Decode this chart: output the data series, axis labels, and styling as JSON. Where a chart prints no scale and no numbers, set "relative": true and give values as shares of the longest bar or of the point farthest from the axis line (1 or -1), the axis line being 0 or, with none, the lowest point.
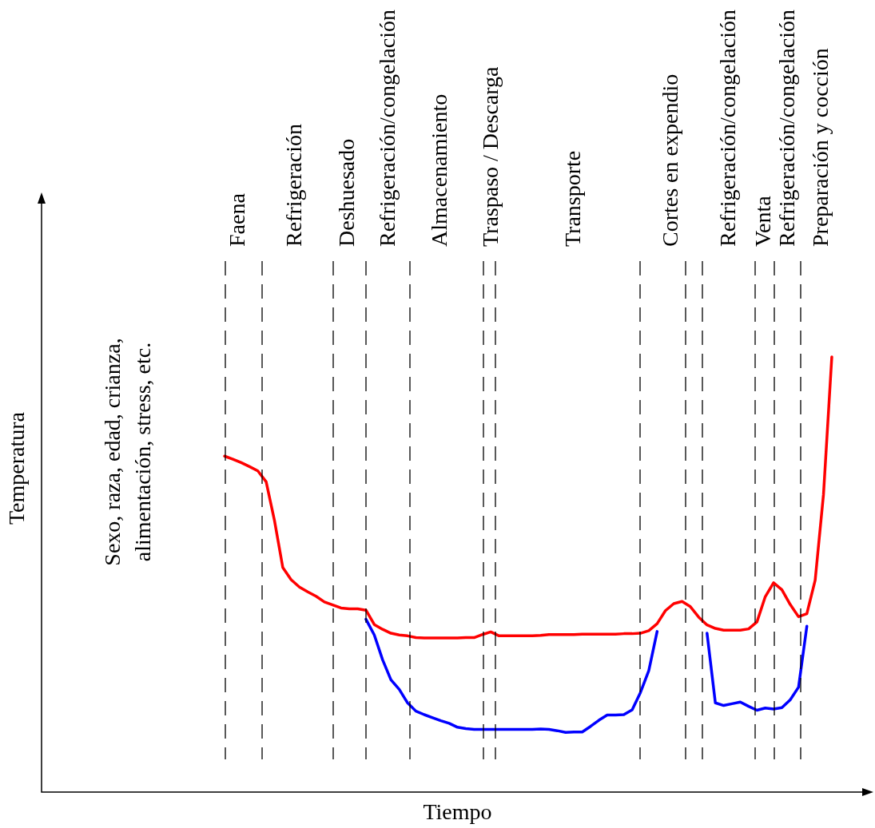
{
  "chart_data": {
    "type": "line",
    "xlabel": "Tiempo",
    "ylabel": "Temperatura",
    "relative": true,
    "marker": "none",
    "grid": "x",
    "categories": [
      null,
      null,
      null,
      null,
      null,
      null,
      null,
      null,
      null,
      null,
      null,
      null,
      null,
      null,
      null,
      null,
      null,
      null,
      null,
      null,
      null,
      null,
      null,
      null,
      null,
      null,
      null,
      null,
      null,
      null,
      null,
      null,
      null,
      null,
      null,
      null,
      null,
      null,
      null,
      null,
      null,
      null,
      null,
      null,
      null,
      null,
      null,
      null,
      null,
      null,
      null,
      null,
      null,
      null,
      null,
      null,
      null,
      null,
      null,
      null,
      null,
      null,
      null,
      null,
      null,
      null,
      null,
      null,
      null,
      null,
      null,
      null,
      null,
      null,
      null,
      null,
      null,
      null,
      null,
      null,
      null,
      null,
      null,
      null,
      null,
      null,
      null,
      null,
      null,
      null,
      null,
      null,
      null,
      null,
      null,
      null,
      null,
      null,
      null,
      null,
      null
    ],
    "series": [
      {
        "color": "#ff0000",
        "values": [
          null,
          null,
          null,
          null,
          null,
          null,
          null,
          null,
          null,
          null,
          null,
          null,
          null,
          null,
          null,
          null,
          null,
          null,
          null,
          null,
          null,
          null,
          0.772,
          0.765,
          0.757,
          0.748,
          0.738,
          0.713,
          0.624,
          0.516,
          0.488,
          0.471,
          0.46,
          0.45,
          0.437,
          0.43,
          0.423,
          0.421,
          0.421,
          0.418,
          0.385,
          0.374,
          0.365,
          0.361,
          0.359,
          0.355,
          0.354,
          0.354,
          0.354,
          0.354,
          0.354,
          0.355,
          0.355,
          0.362,
          0.368,
          0.359,
          0.359,
          0.359,
          0.359,
          0.359,
          0.36,
          0.362,
          0.362,
          0.362,
          0.362,
          0.363,
          0.363,
          0.363,
          0.363,
          0.363,
          0.364,
          0.364,
          0.365,
          0.371,
          0.387,
          0.417,
          0.433,
          0.438,
          0.426,
          0.402,
          0.384,
          0.376,
          0.372,
          0.372,
          0.372,
          0.375,
          0.391,
          0.449,
          0.481,
          0.465,
          0.431,
          0.403,
          0.41,
          0.487,
          0.684,
          1,
          null,
          null,
          null,
          null,
          null
        ]
      },
      {
        "color": "#0000ff",
        "values": [
          null,
          null,
          null,
          null,
          null,
          null,
          null,
          null,
          null,
          null,
          null,
          null,
          null,
          null,
          null,
          null,
          null,
          null,
          null,
          null,
          null,
          null,
          null,
          null,
          null,
          null,
          null,
          null,
          null,
          null,
          null,
          null,
          null,
          null,
          null,
          null,
          null,
          null,
          null,
          0.397,
          0.361,
          0.304,
          0.258,
          0.236,
          0.205,
          0.186,
          0.178,
          0.171,
          0.164,
          0.158,
          0.149,
          0.146,
          0.144,
          0.144,
          0.144,
          0.144,
          0.144,
          0.144,
          0.144,
          0.144,
          0.145,
          0.144,
          0.141,
          0.137,
          0.138,
          0.138,
          0.151,
          0.165,
          0.177,
          0.177,
          0.178,
          0.189,
          0.229,
          0.279,
          0.369,
          null,
          null,
          null,
          null,
          null,
          0.365,
          0.205,
          0.199,
          0.203,
          0.207,
          0.197,
          0.188,
          0.193,
          0.191,
          0.194,
          0.212,
          0.241,
          0.381,
          null,
          null,
          null,
          null,
          null,
          null,
          null,
          null
        ]
      }
    ],
    "annotations": [
      "Sexo, raza, edad, crianza,\nalimentación, stress, etc.",
      "Faena",
      "Refrigeración",
      "Deshuesado",
      "Refrigeración/congelación",
      "Almacenamiento",
      "Traspaso / Descarga",
      "Transporte",
      "Cortes en expendio",
      "Refrigeración/congelación",
      "Venta",
      "Refrigeración/congelación",
      "Preparación y cocción"
    ]
  }
}
